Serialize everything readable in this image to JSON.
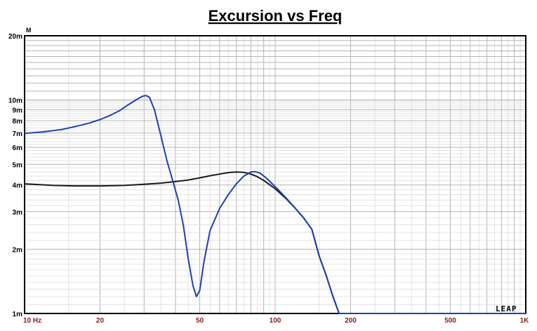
{
  "chart_data": {
    "type": "line",
    "title": "Excursion vs Freq",
    "y_unit_label": "M",
    "x_scale": "log",
    "y_scale": "log",
    "xlim": [
      10,
      1000
    ],
    "ylim": [
      0.001,
      0.02
    ],
    "grid": true,
    "x_tick_labels": [
      {
        "value": 10,
        "label": "10 Hz"
      },
      {
        "value": 20,
        "label": "20"
      },
      {
        "value": 50,
        "label": "50"
      },
      {
        "value": 100,
        "label": "100"
      },
      {
        "value": 200,
        "label": "200"
      },
      {
        "value": 500,
        "label": "500"
      },
      {
        "value": 1000,
        "label": "1K"
      }
    ],
    "y_tick_labels": [
      {
        "value": 0.02,
        "label": "20m"
      },
      {
        "value": 0.01,
        "label": "10m"
      },
      {
        "value": 0.009,
        "label": "9m"
      },
      {
        "value": 0.008,
        "label": "8m"
      },
      {
        "value": 0.007,
        "label": "7m"
      },
      {
        "value": 0.006,
        "label": "6m"
      },
      {
        "value": 0.005,
        "label": "5m"
      },
      {
        "value": 0.004,
        "label": "4m"
      },
      {
        "value": 0.003,
        "label": "3m"
      },
      {
        "value": 0.002,
        "label": "2m"
      },
      {
        "value": 0.001,
        "label": "1m"
      }
    ],
    "series": [
      {
        "color": "#1a1a1a",
        "points": [
          [
            10,
            0.00405
          ],
          [
            13,
            0.00398
          ],
          [
            16,
            0.00396
          ],
          [
            20,
            0.00396
          ],
          [
            25,
            0.00398
          ],
          [
            30,
            0.00403
          ],
          [
            35,
            0.00408
          ],
          [
            40,
            0.00415
          ],
          [
            45,
            0.00422
          ],
          [
            50,
            0.00432
          ],
          [
            55,
            0.00442
          ],
          [
            60,
            0.0045
          ],
          [
            65,
            0.00457
          ],
          [
            70,
            0.0046
          ],
          [
            75,
            0.00458
          ],
          [
            80,
            0.0045
          ],
          [
            85,
            0.00437
          ],
          [
            90,
            0.0042
          ],
          [
            100,
            0.00384
          ],
          [
            110,
            0.00347
          ],
          [
            120,
            0.00312
          ],
          [
            130,
            0.0028
          ],
          [
            140,
            0.00248
          ],
          [
            150,
            0.00185
          ],
          [
            160,
            0.0015
          ],
          [
            170,
            0.0012
          ],
          [
            180,
            0.001
          ]
        ]
      },
      {
        "color": "#1e3fb4",
        "points": [
          [
            10,
            0.00698
          ],
          [
            12,
            0.0071
          ],
          [
            14,
            0.00727
          ],
          [
            16,
            0.00752
          ],
          [
            18,
            0.00778
          ],
          [
            20,
            0.0081
          ],
          [
            22,
            0.00848
          ],
          [
            24,
            0.00893
          ],
          [
            26,
            0.00952
          ],
          [
            28,
            0.01005
          ],
          [
            29.5,
            0.0104
          ],
          [
            30.5,
            0.0105
          ],
          [
            31.5,
            0.0103
          ],
          [
            33,
            0.009
          ],
          [
            35,
            0.0068
          ],
          [
            37,
            0.0052
          ],
          [
            39,
            0.0042
          ],
          [
            41,
            0.0034
          ],
          [
            43,
            0.0026
          ],
          [
            45,
            0.0018
          ],
          [
            47,
            0.00135
          ],
          [
            48.5,
            0.0012
          ],
          [
            50,
            0.00128
          ],
          [
            52,
            0.00175
          ],
          [
            55,
            0.00245
          ],
          [
            60,
            0.0031
          ],
          [
            65,
            0.0036
          ],
          [
            70,
            0.00405
          ],
          [
            75,
            0.0044
          ],
          [
            80,
            0.0046
          ],
          [
            83,
            0.00462
          ],
          [
            87,
            0.00455
          ],
          [
            92,
            0.00432
          ],
          [
            100,
            0.00393
          ],
          [
            110,
            0.0035
          ],
          [
            120,
            0.00312
          ],
          [
            130,
            0.0028
          ],
          [
            140,
            0.00248
          ],
          [
            150,
            0.00185
          ],
          [
            160,
            0.0015
          ],
          [
            170,
            0.0012
          ],
          [
            180,
            0.001
          ],
          [
            1000,
            0.001
          ]
        ]
      }
    ]
  },
  "watermark": "LEAP"
}
